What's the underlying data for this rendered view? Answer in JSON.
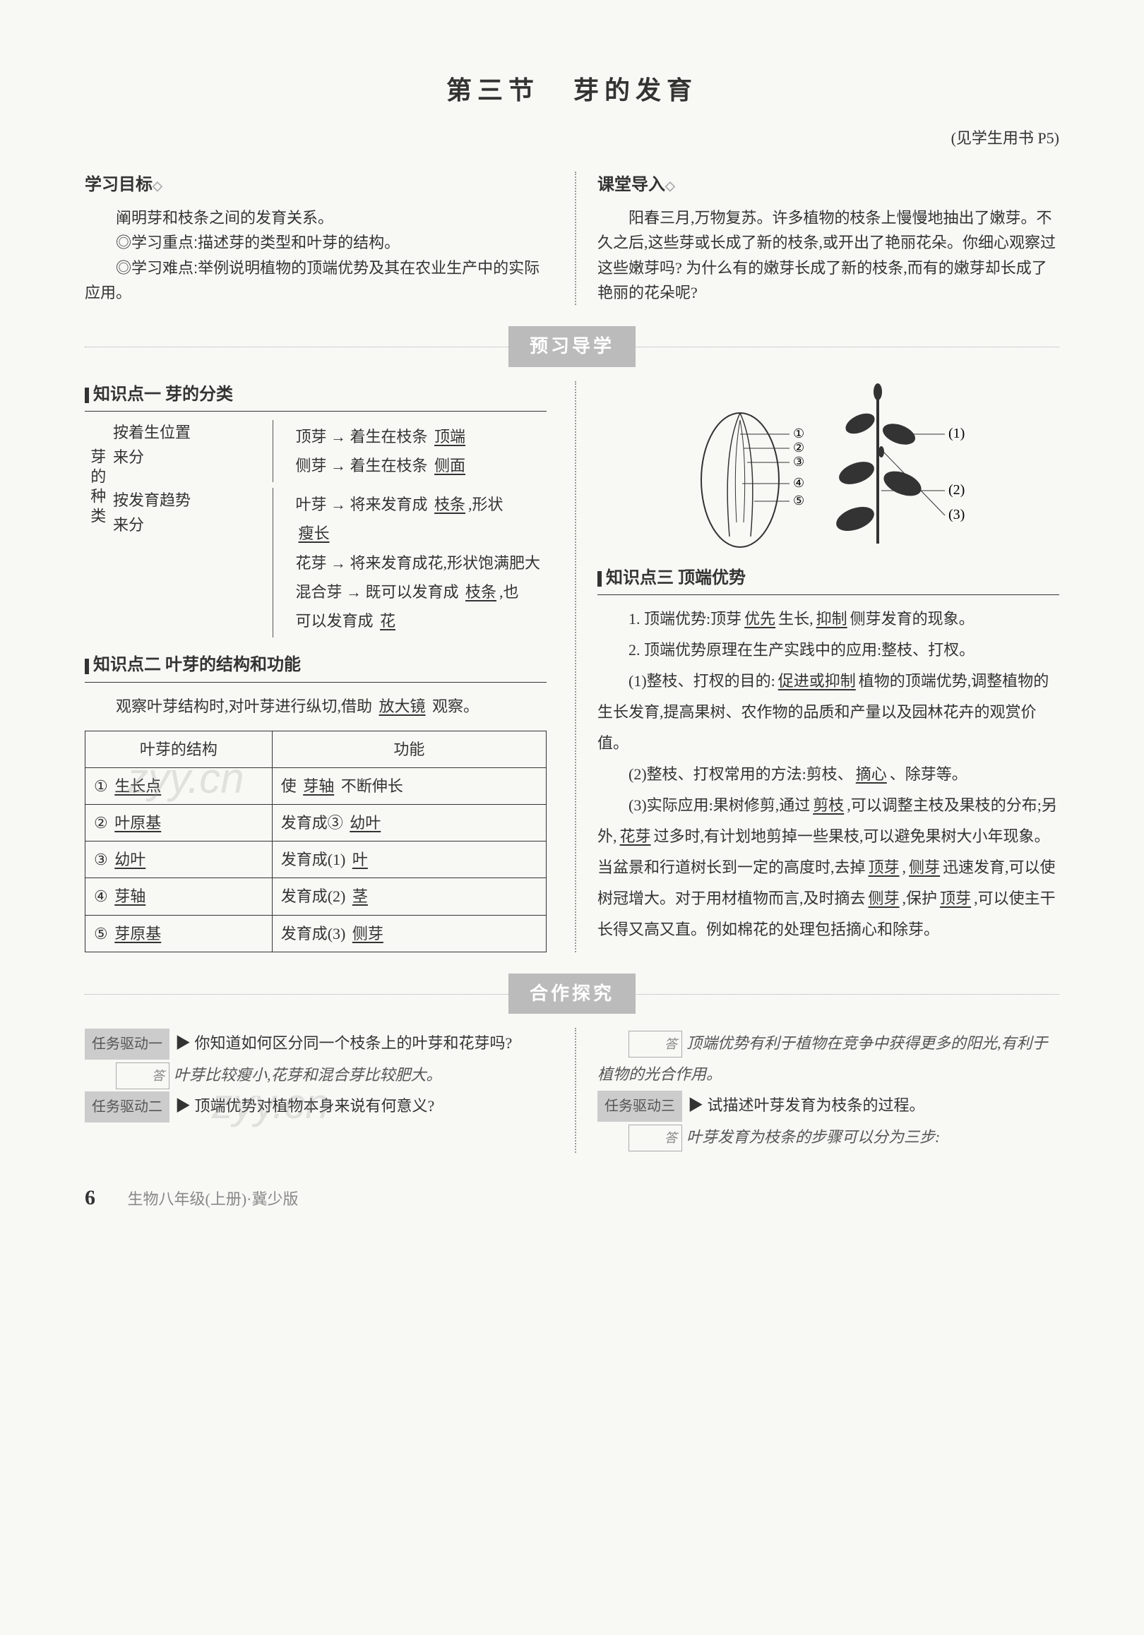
{
  "title": {
    "section": "第三节",
    "name": "芽的发育",
    "page_ref": "(见学生用书 P5)"
  },
  "left_intro": {
    "header": "学习目标",
    "line1": "阐明芽和枝条之间的发育关系。",
    "point1_label": "◎学习重点:",
    "point1": "描述芽的类型和叶芽的结构。",
    "point2_label": "◎学习难点:",
    "point2": "举例说明植物的顶端优势及其在农业生产中的实际应用。"
  },
  "right_intro": {
    "header": "课堂导入",
    "text": "阳春三月,万物复苏。许多植物的枝条上慢慢地抽出了嫩芽。不久之后,这些芽或长成了新的枝条,或开出了艳丽花朵。你细心观察过这些嫩芽吗? 为什么有的嫩芽长成了新的枝条,而有的嫩芽却长成了艳丽的花朵呢?"
  },
  "banner1": "预习导学",
  "kp1": {
    "header": "知识点一  芽的分类",
    "root": "芽的种类",
    "branch1": "按着生位置来分",
    "b1_sub1": "顶芽 → 着生在枝条",
    "b1_sub1_ans": "顶端",
    "b1_sub2": "侧芽 → 着生在枝条",
    "b1_sub2_ans": "侧面",
    "branch2": "按发育趋势来分",
    "b2_sub1": "叶芽 → 将来发育成",
    "b2_sub1_ans": "枝条",
    "b2_sub1_tail": ",形状",
    "b2_sub1_ans2": "瘦长",
    "b2_sub2": "花芽 → 将来发育成花,形状饱满肥大",
    "b2_sub3a": "混合芽 → 既可以发育成",
    "b2_sub3a_ans": "枝条",
    "b2_sub3a_tail": ",也",
    "b2_sub3b": "可以发育成",
    "b2_sub3b_ans": "花"
  },
  "kp2": {
    "header": "知识点二  叶芽的结构和功能",
    "intro_a": "观察叶芽结构时,对叶芽进行纵切,借助",
    "intro_ans": "放大镜",
    "intro_b": "观察。",
    "table": {
      "h1": "叶芽的结构",
      "h2": "功能",
      "rows": [
        {
          "n": "①",
          "name": "生长点",
          "func_a": "使",
          "func_ans": "芽轴",
          "func_b": "不断伸长"
        },
        {
          "n": "②",
          "name": "叶原基",
          "func_a": "发育成③",
          "func_ans": "幼叶",
          "func_b": ""
        },
        {
          "n": "③",
          "name": "幼叶",
          "func_a": "发育成(1)",
          "func_ans": "叶",
          "func_b": ""
        },
        {
          "n": "④",
          "name": "芽轴",
          "func_a": "发育成(2)",
          "func_ans": "茎",
          "func_b": ""
        },
        {
          "n": "⑤",
          "name": "芽原基",
          "func_a": "发育成(3)",
          "func_ans": "侧芽",
          "func_b": ""
        }
      ]
    }
  },
  "diagram_labels": {
    "nums": [
      "①",
      "②",
      "③",
      "④",
      "⑤"
    ],
    "right": [
      "(1)",
      "(2)",
      "(3)"
    ]
  },
  "kp3": {
    "header": "知识点三  顶端优势",
    "p1_a": "1. 顶端优势:顶芽",
    "p1_ans1": "优先",
    "p1_b": "生长,",
    "p1_ans2": "抑制",
    "p1_c": "侧芽发育的现象。",
    "p2": "2. 顶端优势原理在生产实践中的应用:整枝、打杈。",
    "p3_a": "(1)整枝、打杈的目的:",
    "p3_ans": "促进或抑制",
    "p3_b": "植物的顶端优势,调整植物的生长发育,提高果树、农作物的品质和产量以及园林花卉的观赏价值。",
    "p4_a": "(2)整枝、打杈常用的方法:剪枝、",
    "p4_ans": "摘心",
    "p4_b": "、除芽等。",
    "p5_a": "(3)实际应用:果树修剪,通过",
    "p5_ans1": "剪枝",
    "p5_b": ",可以调整主枝及果枝的分布;另外,",
    "p5_ans2": "花芽",
    "p5_c": "过多时,有计划地剪掉一些果枝,可以避免果树大小年现象。当盆景和行道树长到一定的高度时,去掉",
    "p5_ans3": "顶芽",
    "p5_d": ",",
    "p5_ans4": "侧芽",
    "p5_e": "迅速发育,可以使树冠增大。对于用材植物而言,及时摘去",
    "p5_ans5": "侧芽",
    "p5_f": ",保护",
    "p5_ans6": "顶芽",
    "p5_g": ",可以使主干长得又高又直。例如棉花的处理包括摘心和除芽。"
  },
  "banner2": "合作探究",
  "tasks": {
    "t1_tag": "任务驱动一",
    "t1_q": "你知道如何区分同一个枝条上的叶芽和花芽吗?",
    "t1_a": "叶芽比较瘦小,花芽和混合芽比较肥大。",
    "t2_tag": "任务驱动二",
    "t2_q": "顶端优势对植物本身来说有何意义?",
    "t2_a": "顶端优势有利于植物在竞争中获得更多的阳光,有利于植物的光合作用。",
    "t3_tag": "任务驱动三",
    "t3_q": "试描述叶芽发育为枝条的过程。",
    "t3_a": "叶芽发育为枝条的步骤可以分为三步:"
  },
  "footer": {
    "page": "6",
    "book": "生物八年级(上册)·冀少版"
  },
  "watermarks": [
    "zyy.cn",
    "zyy.cn"
  ]
}
